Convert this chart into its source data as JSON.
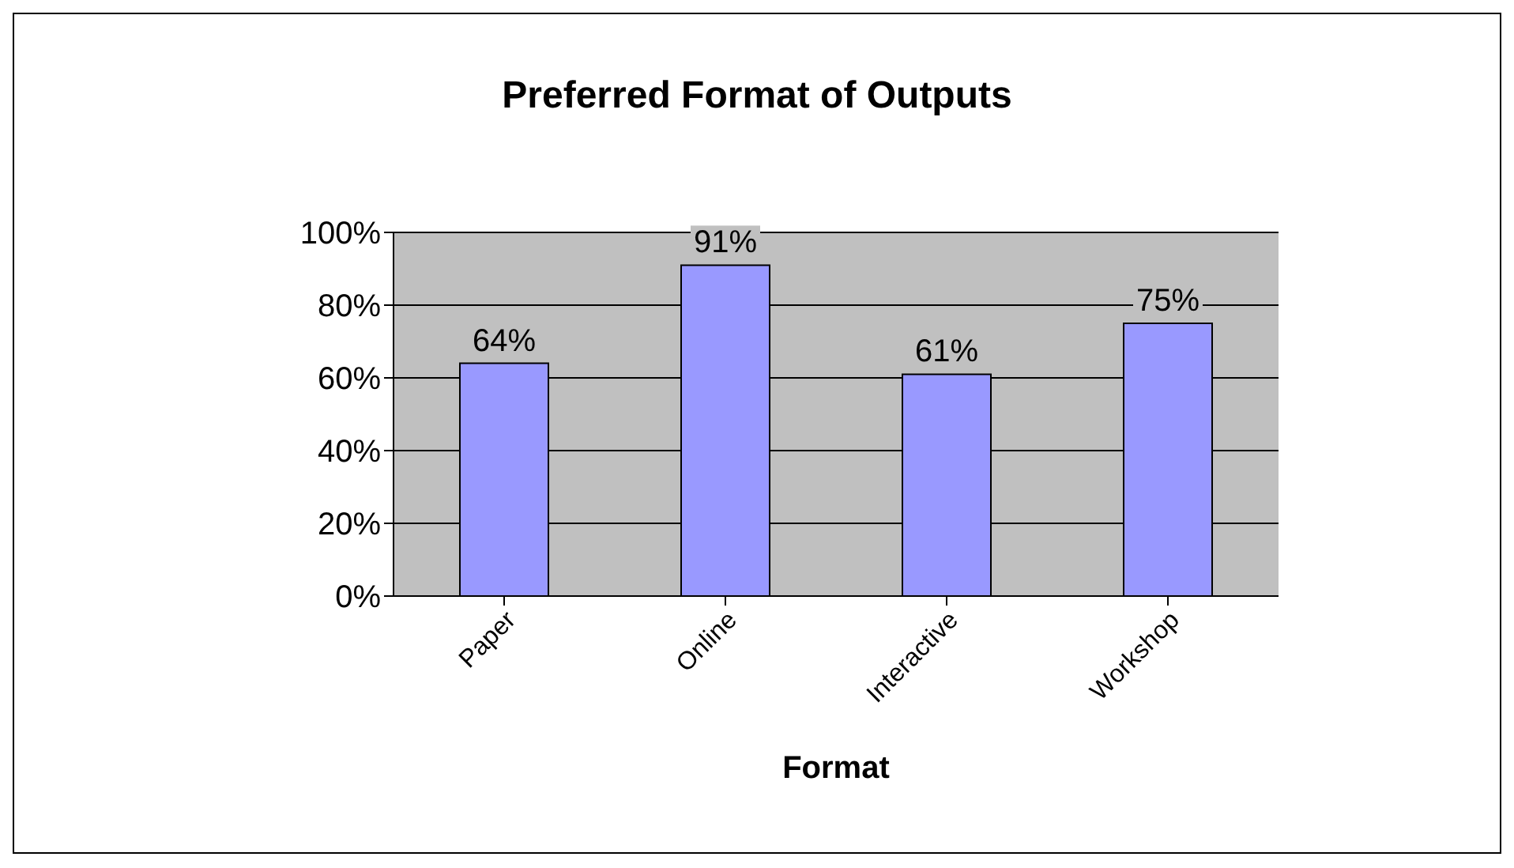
{
  "chart_data": {
    "type": "bar",
    "title": "Preferred Format of Outputs",
    "xlabel": "Format",
    "categories": [
      "Paper",
      "Online",
      "Interactive",
      "Workshop"
    ],
    "values": [
      64,
      91,
      61,
      75
    ],
    "color": "#9999ff",
    "value_labels": [
      "64%",
      "91%",
      "61%",
      "75%"
    ],
    "ylim": [
      0,
      100
    ],
    "yticks": [
      {
        "value": 0,
        "label": "0%"
      },
      {
        "value": 20,
        "label": "20%"
      },
      {
        "value": 40,
        "label": "40%"
      },
      {
        "value": 60,
        "label": "60%"
      },
      {
        "value": 80,
        "label": "80%"
      },
      {
        "value": 100,
        "label": "100%"
      }
    ],
    "grid": "y"
  }
}
